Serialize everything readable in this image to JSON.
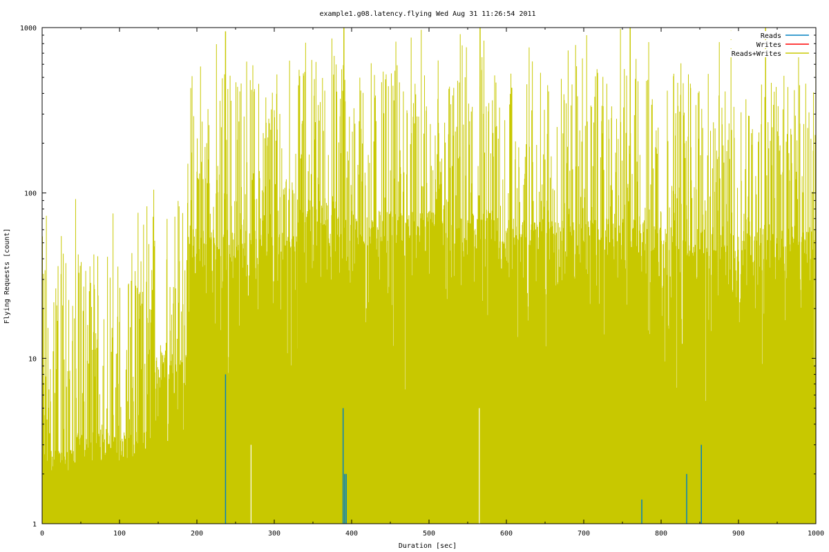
{
  "chart_data": {
    "type": "line",
    "title": "example1.g08.latency.flying Wed Aug 31 11:26:54 2011",
    "xlabel": "Duration [sec]",
    "ylabel": "Flying Requests [count]",
    "xlim": [
      0,
      1000
    ],
    "ylim": [
      1,
      1000
    ],
    "yscale": "log",
    "grid": false,
    "legend_position": "top-right",
    "x_ticks": [
      "0",
      "100",
      "200",
      "300",
      "400",
      "500",
      "600",
      "700",
      "800",
      "900",
      "1000"
    ],
    "y_ticks": [
      "1",
      "10",
      "100",
      "1000"
    ],
    "series": [
      {
        "name": "Reads",
        "color": "#0080c0",
        "style": "impulses",
        "points": [
          [
            237,
            8
          ],
          [
            389,
            5
          ],
          [
            391,
            2
          ],
          [
            393,
            2
          ],
          [
            775,
            1.4
          ],
          [
            833,
            2
          ],
          [
            852,
            3
          ]
        ]
      },
      {
        "name": "Writes",
        "color": "#ff0000",
        "style": "impulses",
        "points": []
      },
      {
        "name": "Reads+Writes",
        "color": "#c8c800",
        "style": "impulses",
        "segments": [
          {
            "x_start": 0,
            "x_end": 45,
            "baseline": 2,
            "peak_median": 2.5,
            "peak_max": 120
          },
          {
            "x_start": 45,
            "x_end": 135,
            "baseline": 2,
            "peak_median": 3,
            "peak_max": 85
          },
          {
            "x_start": 135,
            "x_end": 190,
            "baseline": 2,
            "peak_median": 8,
            "peak_max": 170
          },
          {
            "x_start": 190,
            "x_end": 330,
            "baseline": 3,
            "peak_median": 40,
            "peak_max": 950
          },
          {
            "x_start": 330,
            "x_end": 390,
            "baseline": 3,
            "peak_median": 60,
            "peak_max": 1000
          },
          {
            "x_start": 390,
            "x_end": 600,
            "baseline": 3,
            "peak_median": 50,
            "peak_max": 1000
          },
          {
            "x_start": 600,
            "x_end": 800,
            "baseline": 3,
            "peak_median": 45,
            "peak_max": 1000
          },
          {
            "x_start": 800,
            "x_end": 1000,
            "baseline": 3,
            "peak_median": 40,
            "peak_max": 1000
          }
        ],
        "notable_peaks": [
          [
            237,
            950
          ],
          [
            390,
            1000
          ],
          [
            566,
            1000
          ],
          [
            760,
            1000
          ],
          [
            935,
            1000
          ]
        ]
      }
    ]
  }
}
